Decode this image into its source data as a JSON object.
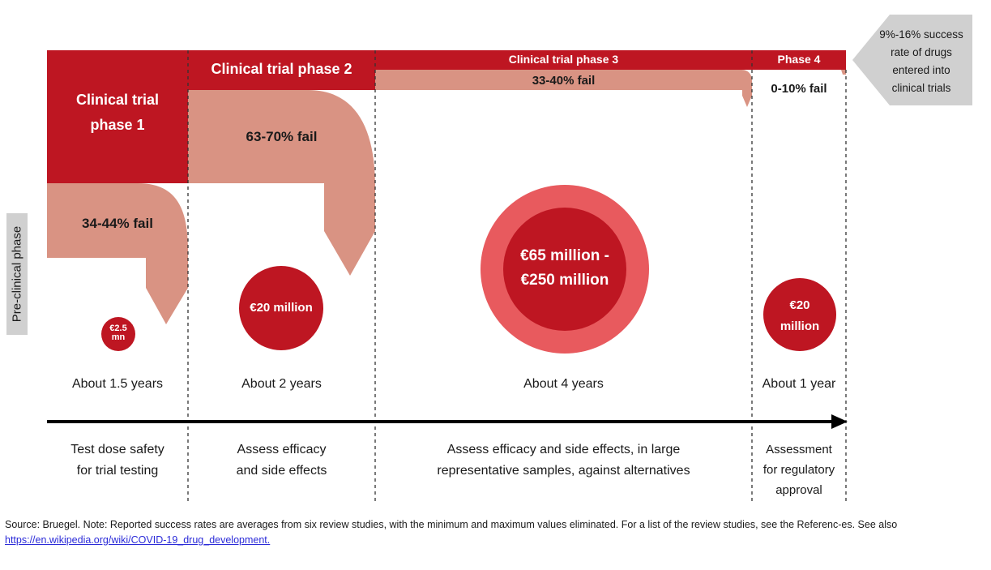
{
  "side_label": "Pre-clinical phase",
  "phases": {
    "p1": {
      "title_line1": "Clinical trial",
      "title_line2": "phase 1",
      "fail": "34-44% fail",
      "cost_line1": "€2.5",
      "cost_line2": "mn",
      "duration": "About 1.5 years",
      "purpose_line1": "Test dose safety",
      "purpose_line2": "for trial testing"
    },
    "p2": {
      "title": "Clinical trial phase 2",
      "fail": "63-70% fail",
      "cost": "€20 million",
      "duration": "About 2 years",
      "purpose_line1": "Assess efficacy",
      "purpose_line2": "and side effects"
    },
    "p3": {
      "title": "Clinical trial phase 3",
      "fail": "33-40% fail",
      "cost_line1": "€65 million -",
      "cost_line2": "€250 million",
      "duration": "About 4 years",
      "purpose_line1": "Assess efficacy and side effects, in large",
      "purpose_line2": "representative samples, against alternatives"
    },
    "p4": {
      "title": "Phase 4",
      "fail": "0-10% fail",
      "cost_line1": "€20",
      "cost_line2": "million",
      "duration": "About 1 year",
      "purpose_line1": "Assessment",
      "purpose_line2": "for regulatory",
      "purpose_line3": "approval"
    }
  },
  "success": {
    "line1": "9%-16% success",
    "line2": "rate of drugs",
    "line3": "entered into",
    "line4": "clinical trials"
  },
  "footer": {
    "note": "Source: Bruegel. Note: Reported success rates are averages from six review studies, with the minimum and maximum values eliminated. For a list of the review studies, see the Referenc-es. See also ",
    "link": "https://en.wikipedia.org/wiki/COVID-19_drug_development."
  },
  "colors": {
    "dark_red": "#be1622",
    "salmon": "#d99383",
    "light_red": "#e85a5e",
    "arrow_grey": "#d0d0d0"
  }
}
